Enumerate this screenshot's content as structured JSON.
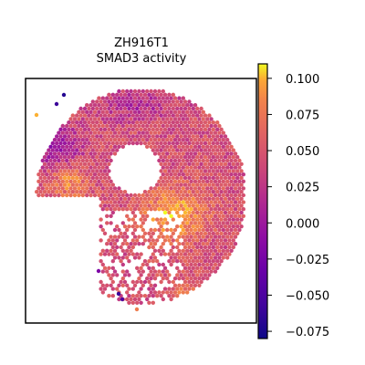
{
  "chart_data": {
    "type": "scatter",
    "title_lines": [
      "ZH916T1",
      "SMAD3 activity"
    ],
    "xlabel": "",
    "ylabel": "",
    "grid": false,
    "colormap": "plasma",
    "colorbar": {
      "vmin": -0.08,
      "vmax": 0.11,
      "ticks": [
        0.1,
        0.075,
        0.05,
        0.025,
        0.0,
        -0.025,
        -0.05,
        -0.075
      ],
      "tick_labels": [
        "0.100",
        "0.075",
        "0.050",
        "0.025",
        "0.000",
        "−0.025",
        "−0.050",
        "−0.075"
      ]
    },
    "spots": {
      "description_free": true,
      "x_range": [
        0,
        1
      ],
      "y_range": [
        0,
        1
      ]
    }
  }
}
